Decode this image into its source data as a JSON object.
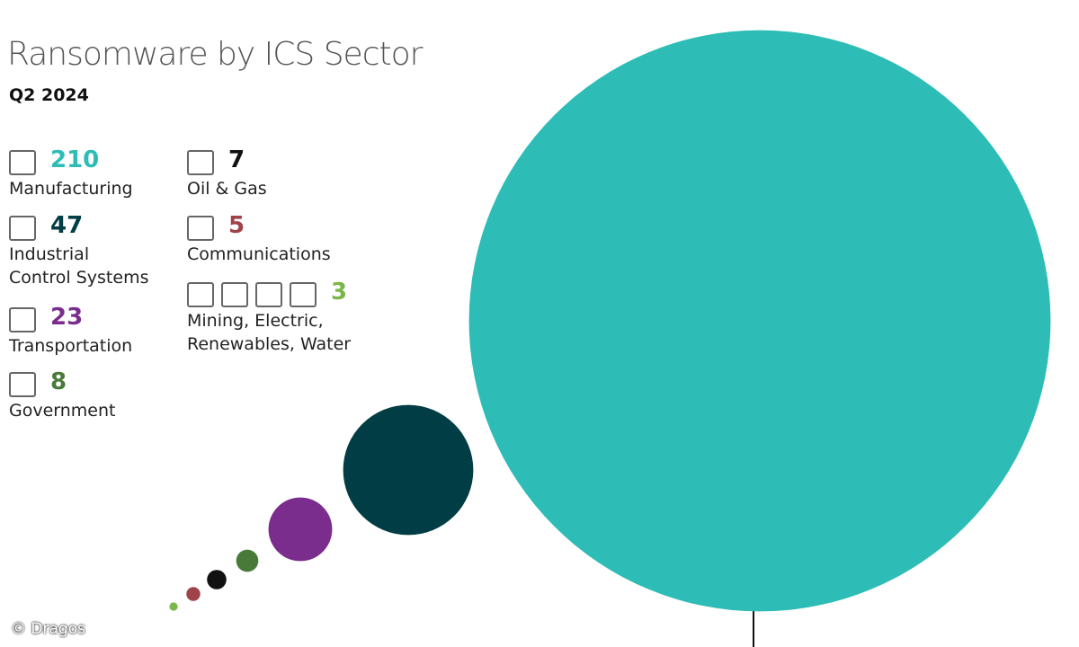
{
  "chart_data": {
    "type": "bubble",
    "title": "Ransomware by ICS Sector",
    "subtitle": "Q2 2024",
    "categories": [
      "Manufacturing",
      "Industrial Control Systems",
      "Transportation",
      "Government",
      "Oil & Gas",
      "Communications",
      "Mining, Electric, Renewables, Water"
    ],
    "values": [
      210,
      47,
      23,
      8,
      7,
      5,
      3
    ],
    "colors": [
      "#2dbdb6",
      "#003d44",
      "#7b2d8e",
      "#4a7a3a",
      "#111111",
      "#a0424a",
      "#7ab648"
    ],
    "credit": "© Dragos"
  }
}
